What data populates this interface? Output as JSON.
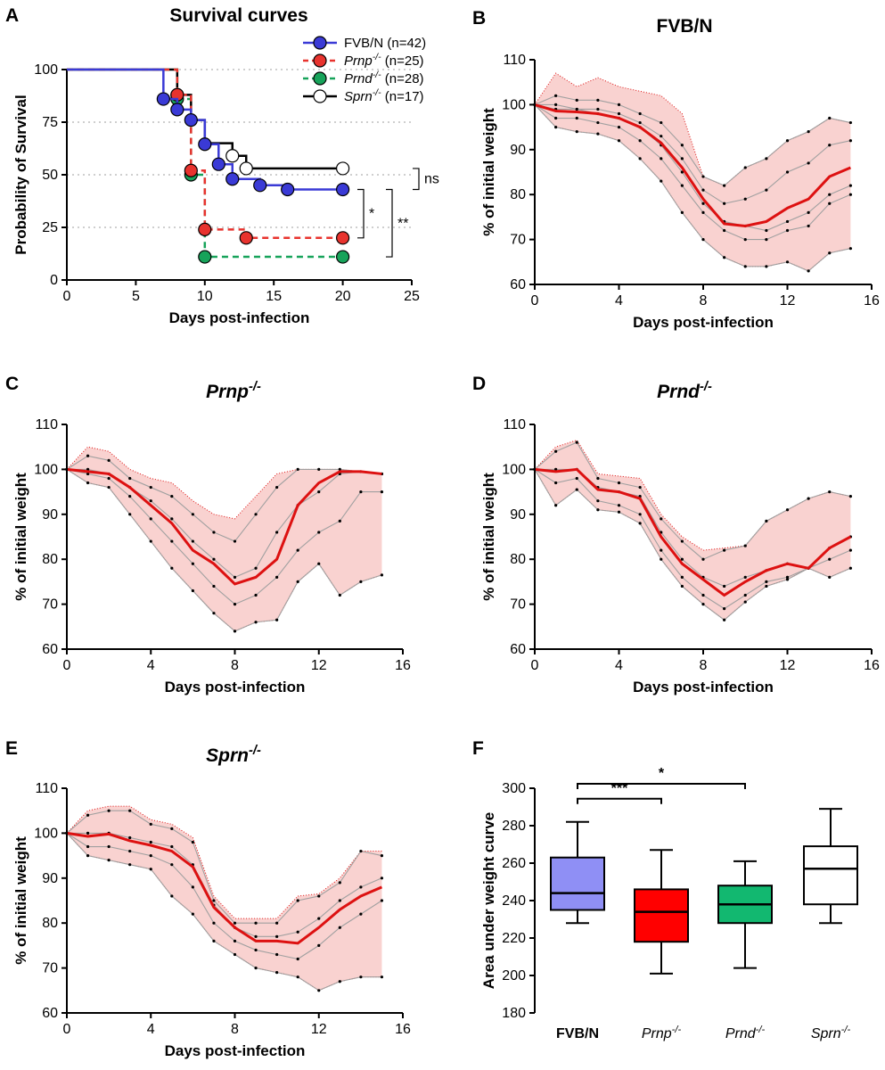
{
  "panels": {
    "A": "A",
    "B": "B",
    "C": "C",
    "D": "D",
    "E": "E",
    "F": "F"
  },
  "colors": {
    "fvb": "#3a3ad6",
    "prnp": "#e8332e",
    "prnd": "#17a35a",
    "sprn": "#000000",
    "grey_line": "#a0a0a0",
    "mean_line": "#dd1111",
    "envelope": "#f9d2d0",
    "box_fvb": "#8f8ff5",
    "box_prnp": "#ff0000",
    "box_prnd": "#12b870",
    "box_sprn": "#ffffff"
  },
  "chart_data": [
    {
      "id": "A",
      "type": "line",
      "title": "Survival curves",
      "xlabel": "Days post-infection",
      "ylabel": "Probability of Survival",
      "xlim": [
        0,
        25
      ],
      "ylim": [
        0,
        100
      ],
      "xticks": [
        0,
        5,
        10,
        15,
        20,
        25
      ],
      "yticks": [
        0,
        25,
        50,
        75,
        100
      ],
      "grid_y": [
        25,
        50,
        75,
        100
      ],
      "legend": [
        {
          "key": "fvb",
          "name": "FVB/N",
          "sup": "",
          "n": " (n=42)"
        },
        {
          "key": "prnp",
          "name": "Prnp",
          "sup": "-/-",
          "n": " (n=25)"
        },
        {
          "key": "prnd",
          "name": "Prnd",
          "sup": "-/-",
          "n": " (n=28)"
        },
        {
          "key": "sprn",
          "name": "Sprn",
          "sup": "-/-",
          "n": " (n=17)"
        }
      ],
      "series": [
        {
          "key": "sprn",
          "dashed": false,
          "steps": [
            [
              0,
              100
            ],
            [
              8,
              100
            ],
            [
              8,
              88
            ],
            [
              9,
              88
            ],
            [
              9,
              76
            ],
            [
              10,
              76
            ],
            [
              10,
              65
            ],
            [
              12,
              65
            ],
            [
              12,
              59
            ],
            [
              13,
              59
            ],
            [
              13,
              53
            ],
            [
              20,
              53
            ]
          ],
          "markers": [
            [
              8,
              88
            ],
            [
              12,
              59
            ],
            [
              13,
              53
            ],
            [
              20,
              53
            ]
          ]
        },
        {
          "key": "prnd",
          "dashed": true,
          "steps": [
            [
              0,
              100
            ],
            [
              8,
              100
            ],
            [
              8,
              86
            ],
            [
              9,
              86
            ],
            [
              9,
              50
            ],
            [
              10,
              50
            ],
            [
              10,
              11
            ],
            [
              20,
              11
            ]
          ],
          "markers": [
            [
              8,
              86
            ],
            [
              9,
              50
            ],
            [
              10,
              11
            ],
            [
              20,
              11
            ]
          ]
        },
        {
          "key": "prnp",
          "dashed": true,
          "steps": [
            [
              0,
              100
            ],
            [
              8,
              100
            ],
            [
              8,
              88
            ],
            [
              9,
              88
            ],
            [
              9,
              52
            ],
            [
              10,
              52
            ],
            [
              10,
              24
            ],
            [
              13,
              24
            ],
            [
              13,
              20
            ],
            [
              20,
              20
            ]
          ],
          "markers": [
            [
              8,
              88
            ],
            [
              9,
              52
            ],
            [
              10,
              24
            ],
            [
              13,
              20
            ],
            [
              20,
              20
            ]
          ]
        },
        {
          "key": "fvb",
          "dashed": false,
          "steps": [
            [
              0,
              100
            ],
            [
              7,
              100
            ],
            [
              7,
              86
            ],
            [
              8,
              86
            ],
            [
              8,
              81
            ],
            [
              9,
              81
            ],
            [
              9,
              76
            ],
            [
              10,
              76
            ],
            [
              10,
              64.5
            ],
            [
              11,
              64.5
            ],
            [
              11,
              55
            ],
            [
              12,
              55
            ],
            [
              12,
              48
            ],
            [
              14,
              48
            ],
            [
              14,
              45
            ],
            [
              16,
              45
            ],
            [
              16,
              43
            ],
            [
              20,
              43
            ]
          ],
          "markers": [
            [
              7,
              86
            ],
            [
              8,
              81
            ],
            [
              9,
              76
            ],
            [
              10,
              64.5
            ],
            [
              11,
              55
            ],
            [
              12,
              48
            ],
            [
              14,
              45
            ],
            [
              16,
              43
            ],
            [
              20,
              43
            ]
          ]
        }
      ],
      "significance": [
        {
          "label": "ns",
          "y1": 53,
          "y2": 43
        },
        {
          "label": "*",
          "y1": 43,
          "y2": 20
        },
        {
          "label": "**",
          "y1": 43,
          "y2": 11
        }
      ]
    },
    {
      "id": "B",
      "type": "line",
      "title": "FVB/N",
      "title_sup": "",
      "xlabel": "Days post-infection",
      "ylabel": "% of initial weight",
      "xlim": [
        0,
        16
      ],
      "ylim": [
        60,
        110
      ],
      "xticks": [
        0,
        4,
        8,
        12,
        16
      ],
      "yticks": [
        60,
        70,
        80,
        90,
        100,
        110
      ],
      "days": [
        0,
        1,
        2,
        3,
        4,
        5,
        6,
        7,
        8,
        9,
        10,
        11,
        12,
        13,
        14,
        15
      ],
      "mean": [
        100,
        98.6,
        98.4,
        98,
        97,
        95,
        91.5,
        86,
        79,
        73.5,
        73,
        74,
        77,
        79,
        84,
        86
      ],
      "upper": [
        100,
        107,
        104,
        106,
        104,
        103,
        102,
        98,
        84,
        82,
        86,
        88,
        92,
        94,
        97,
        96
      ],
      "lower": [
        100,
        95,
        94,
        93.5,
        92,
        88,
        83,
        76,
        70,
        66,
        64,
        64,
        65,
        63,
        67,
        68
      ],
      "individuals": [
        [
          100,
          102,
          101,
          101,
          100,
          98,
          96,
          91,
          84,
          82,
          86,
          88,
          92,
          94,
          97,
          96
        ],
        [
          100,
          99,
          99,
          99,
          98,
          96,
          93,
          88,
          81,
          78,
          79,
          81,
          85,
          87,
          91,
          92
        ],
        [
          100,
          97,
          97,
          96,
          95,
          92,
          88,
          82,
          76,
          72,
          70,
          70,
          72,
          73,
          78,
          80
        ],
        [
          100,
          95,
          94,
          93.5,
          92,
          88,
          83,
          76,
          70,
          66,
          64,
          64,
          65,
          63,
          67,
          68
        ],
        [
          100,
          100,
          99,
          98,
          97,
          95,
          91,
          85,
          78,
          74,
          73,
          72,
          74,
          76,
          80,
          82
        ]
      ]
    },
    {
      "id": "C",
      "type": "line",
      "title": "Prnp",
      "title_sup": "-/-",
      "xlabel": "Days post-infection",
      "ylabel": "% of initial weight",
      "xlim": [
        0,
        16
      ],
      "ylim": [
        60,
        110
      ],
      "xticks": [
        0,
        4,
        8,
        12,
        16
      ],
      "yticks": [
        60,
        70,
        80,
        90,
        100,
        110
      ],
      "days": [
        0,
        1,
        2,
        3,
        4,
        5,
        6,
        7,
        8,
        9,
        10,
        11,
        12,
        13,
        14,
        15
      ],
      "mean": [
        100,
        99.5,
        99,
        96,
        92,
        88,
        82,
        79,
        74.5,
        76,
        80,
        92,
        97,
        99.5,
        99.5,
        99
      ],
      "upper": [
        100,
        105,
        104,
        100,
        98,
        97,
        93,
        90,
        89,
        94,
        99,
        100,
        100,
        100,
        99.5,
        99
      ],
      "lower": [
        100,
        97,
        96,
        90,
        84,
        78,
        73,
        68,
        64,
        66,
        66.5,
        75,
        79,
        72,
        75,
        76.5
      ],
      "individuals": [
        [
          100,
          103,
          102,
          98,
          96,
          94,
          90,
          86,
          84,
          90,
          96,
          100,
          100,
          100,
          99.5,
          99
        ],
        [
          100,
          100,
          99,
          96,
          93,
          89,
          84,
          80,
          76,
          78,
          86,
          92,
          95,
          99,
          99.5,
          99
        ],
        [
          100,
          99,
          98,
          94,
          89,
          84,
          79,
          74,
          70,
          72,
          76,
          82,
          86,
          88.5,
          95,
          95
        ],
        [
          100,
          97,
          96,
          90,
          84,
          78,
          73,
          68,
          64,
          66,
          66.5,
          75,
          79,
          72,
          75,
          76.5
        ]
      ]
    },
    {
      "id": "D",
      "type": "line",
      "title": "Prnd",
      "title_sup": "-/-",
      "xlabel": "Days post-infection",
      "ylabel": "% of initial weight",
      "xlim": [
        0,
        16
      ],
      "ylim": [
        60,
        110
      ],
      "xticks": [
        0,
        4,
        8,
        12,
        16
      ],
      "yticks": [
        60,
        70,
        80,
        90,
        100,
        110
      ],
      "days": [
        0,
        1,
        2,
        3,
        4,
        5,
        6,
        7,
        8,
        9,
        10,
        11,
        12,
        13,
        14,
        15
      ],
      "mean": [
        100,
        99.5,
        100,
        95.5,
        95,
        93.5,
        85,
        79,
        75.5,
        72,
        75,
        77.5,
        79,
        78,
        82.5,
        85
      ],
      "upper": [
        100,
        105,
        106.5,
        99,
        98.5,
        98,
        90,
        85,
        82,
        82.5,
        83,
        88.5,
        91,
        93.5,
        95,
        94
      ],
      "lower": [
        100,
        92,
        95.5,
        91,
        90.5,
        88,
        80,
        74,
        70,
        66.5,
        70.5,
        74,
        75.5,
        78,
        76,
        78
      ],
      "individuals": [
        [
          100,
          104,
          106,
          98,
          97,
          96,
          89,
          84,
          80,
          82,
          83,
          88.5,
          91,
          93.5,
          95,
          94
        ],
        [
          100,
          100,
          100,
          96,
          95,
          94,
          86,
          80,
          76,
          74,
          76,
          77.5,
          79,
          78,
          82.5,
          85
        ],
        [
          100,
          97,
          98,
          93,
          92,
          90,
          82,
          76,
          72,
          69,
          72,
          75,
          76,
          78,
          80,
          82
        ],
        [
          100,
          92,
          95.5,
          91,
          90.5,
          88,
          80,
          74,
          70,
          66.5,
          70.5,
          74,
          75.5,
          78,
          76,
          78
        ]
      ]
    },
    {
      "id": "E",
      "type": "line",
      "title": "Sprn",
      "title_sup": "-/-",
      "xlabel": "Days post-infection",
      "ylabel": "% of initial weight",
      "xlim": [
        0,
        16
      ],
      "ylim": [
        60,
        110
      ],
      "xticks": [
        0,
        4,
        8,
        12,
        16
      ],
      "yticks": [
        60,
        70,
        80,
        90,
        100,
        110
      ],
      "days": [
        0,
        1,
        2,
        3,
        4,
        5,
        6,
        7,
        8,
        9,
        10,
        11,
        12,
        13,
        14,
        15
      ],
      "mean": [
        100,
        99.3,
        99.8,
        98.3,
        97.3,
        96,
        92.5,
        83.5,
        79,
        76,
        76,
        75.5,
        79,
        83,
        86,
        88
      ],
      "upper": [
        100,
        105,
        106,
        106,
        103,
        102,
        99,
        86,
        81,
        81,
        81,
        86,
        86.5,
        90,
        96,
        96
      ],
      "lower": [
        100,
        95,
        94,
        93,
        92,
        86,
        82,
        76,
        73,
        70,
        69,
        68,
        65,
        67,
        68,
        68
      ],
      "individuals": [
        [
          100,
          104,
          105,
          105,
          102,
          101,
          98,
          85,
          80,
          80,
          80,
          85,
          86,
          89,
          96,
          95
        ],
        [
          100,
          100,
          100,
          99,
          98,
          97,
          93,
          84,
          79,
          77,
          77,
          78,
          81,
          85,
          88,
          90
        ],
        [
          100,
          97,
          97,
          96,
          95,
          93,
          88,
          80,
          76,
          74,
          73,
          72,
          75,
          79,
          82,
          85
        ],
        [
          100,
          95,
          94,
          93,
          92,
          86,
          82,
          76,
          73,
          70,
          69,
          68,
          65,
          67,
          68,
          68
        ]
      ]
    },
    {
      "id": "F",
      "type": "box",
      "xlabel": "",
      "ylabel": "Area under weight curve",
      "ylim": [
        180,
        300
      ],
      "yticks": [
        180,
        200,
        220,
        240,
        260,
        280,
        300
      ],
      "categories": [
        {
          "key": "box_fvb",
          "name": "FVB/N",
          "sup": "",
          "italic": false
        },
        {
          "key": "box_prnp",
          "name": "Prnp",
          "sup": "-/-",
          "italic": true
        },
        {
          "key": "box_prnd",
          "name": "Prnd",
          "sup": "-/-",
          "italic": true
        },
        {
          "key": "box_sprn",
          "name": "Sprn",
          "sup": "-/-",
          "italic": true
        }
      ],
      "boxes": [
        {
          "min": 228,
          "q1": 235,
          "median": 244,
          "q3": 263,
          "max": 282
        },
        {
          "min": 201,
          "q1": 218,
          "median": 234,
          "q3": 246,
          "max": 267
        },
        {
          "min": 204,
          "q1": 228,
          "median": 238,
          "q3": 248,
          "max": 261
        },
        {
          "min": 228,
          "q1": 238,
          "median": 257,
          "q3": 269,
          "max": 289
        }
      ],
      "significance": [
        {
          "label": "***",
          "from": 0,
          "to": 1,
          "y": 292
        },
        {
          "label": "*",
          "from": 0,
          "to": 2,
          "y": 300
        }
      ]
    }
  ]
}
